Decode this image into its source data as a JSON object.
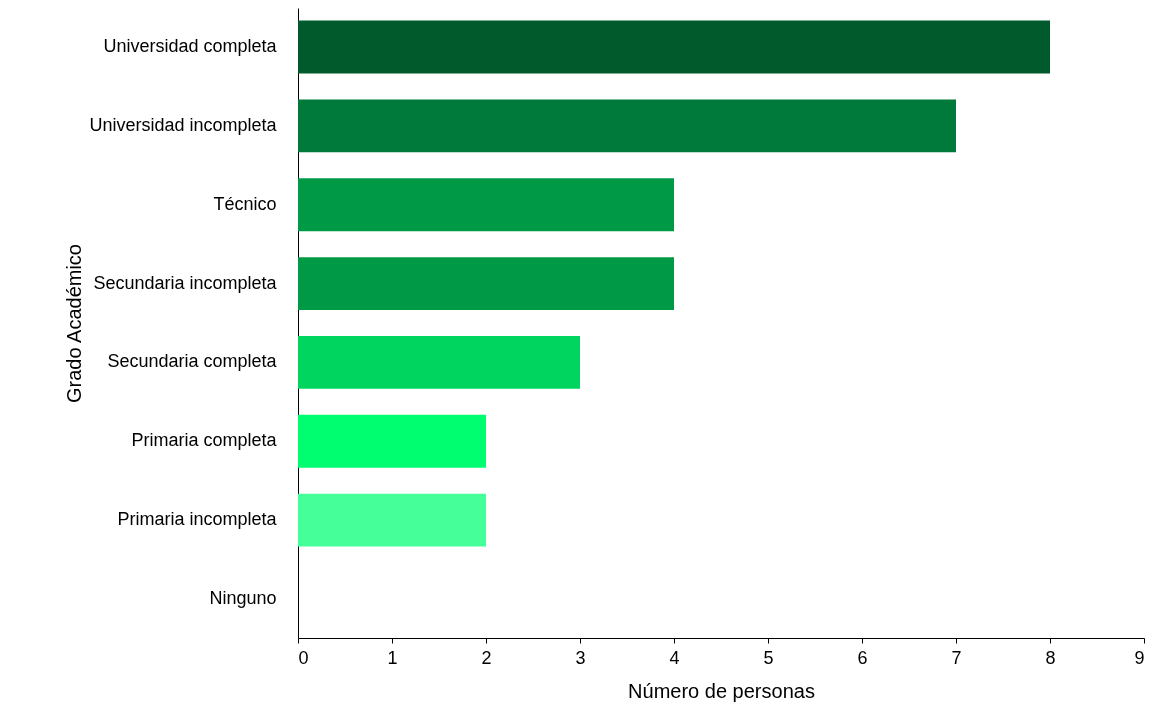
{
  "chart_data": {
    "type": "bar",
    "orientation": "horizontal",
    "xlabel": "Número de personas",
    "ylabel": "Grado Académico",
    "categories": [
      "Universidad completa",
      "Universidad incompleta",
      "Técnico",
      "Secundaria incompleta",
      "Secundaria completa",
      "Primaria completa",
      "Primaria incompleta",
      "Ninguno"
    ],
    "values": [
      8,
      7,
      4,
      4,
      3,
      2,
      2,
      0
    ],
    "colors": [
      "#005a2b",
      "#007a3a",
      "#009a47",
      "#009a47",
      "#00d560",
      "#00ff70",
      "#45ff99",
      "#45ff99"
    ],
    "xlim": [
      0,
      9
    ],
    "xticks": [
      0,
      1,
      2,
      3,
      4,
      5,
      6,
      7,
      8,
      9
    ],
    "grid": false
  }
}
